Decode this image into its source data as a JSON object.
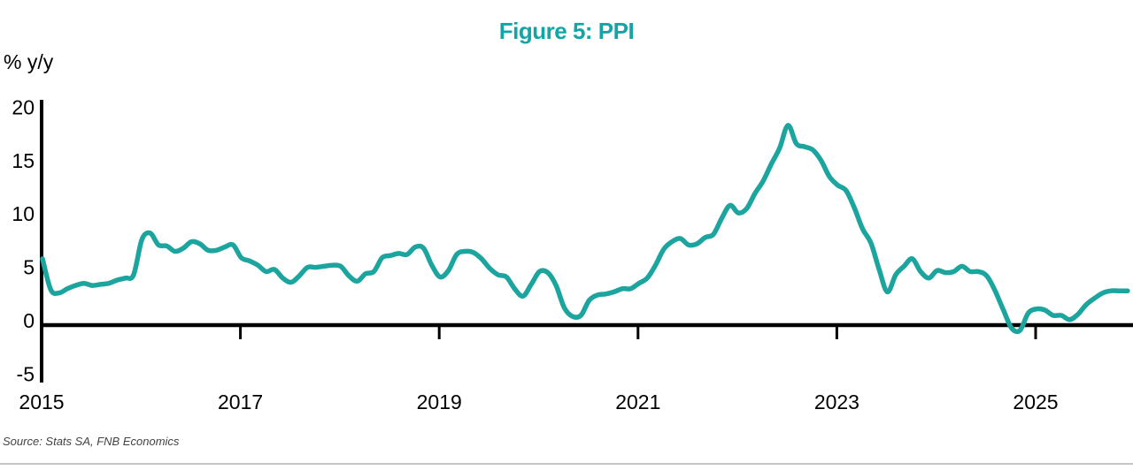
{
  "colors": {
    "title": "#12a5a6",
    "line": "#1ca59e",
    "axis": "#000000",
    "source_text": "#434343",
    "divider": "#c6c6c6"
  },
  "chart_data": {
    "type": "line",
    "title": "Figure 5: PPI",
    "ylabel": "% y/y",
    "source": "Source: Stats SA, FNB Economics",
    "ylim": [
      -5,
      20
    ],
    "y_ticks": [
      20,
      15,
      10,
      5,
      0,
      -5
    ],
    "x_ticks": [
      {
        "label": "2015",
        "year": 2015,
        "has_tick_mark": false
      },
      {
        "label": "2017",
        "year": 2017,
        "has_tick_mark": true
      },
      {
        "label": "2019",
        "year": 2019,
        "has_tick_mark": true
      },
      {
        "label": "2021",
        "year": 2021,
        "has_tick_mark": true
      },
      {
        "label": "2023",
        "year": 2023,
        "has_tick_mark": true
      },
      {
        "label": "2025",
        "year": 2025,
        "has_tick_mark": true
      }
    ],
    "grid": false,
    "legend": "none",
    "series": [
      {
        "name": "PPI % y/y",
        "start": "2015-01",
        "frequency": "monthly",
        "values": [
          5.8,
          2.9,
          2.6,
          3.0,
          3.3,
          3.5,
          3.3,
          3.4,
          3.5,
          3.8,
          4.0,
          4.3,
          7.6,
          8.2,
          7.1,
          7.0,
          6.5,
          6.8,
          7.4,
          7.2,
          6.6,
          6.6,
          6.9,
          7.1,
          5.9,
          5.6,
          5.2,
          4.6,
          4.8,
          4.0,
          3.6,
          4.2,
          5.0,
          5.0,
          5.1,
          5.2,
          5.1,
          4.2,
          3.7,
          4.4,
          4.6,
          5.9,
          6.1,
          6.3,
          6.2,
          6.9,
          6.8,
          5.2,
          4.1,
          4.7,
          6.2,
          6.5,
          6.4,
          5.8,
          4.9,
          4.3,
          4.1,
          3.0,
          2.3,
          3.4,
          4.6,
          4.5,
          3.3,
          1.2,
          0.4,
          0.5,
          1.9,
          2.4,
          2.5,
          2.7,
          3.0,
          3.0,
          3.5,
          4.0,
          5.2,
          6.7,
          7.4,
          7.7,
          7.1,
          7.2,
          7.8,
          8.1,
          9.6,
          10.8,
          10.1,
          10.5,
          11.9,
          13.1,
          14.7,
          16.2,
          18.3,
          16.6,
          16.3,
          16.0,
          15.0,
          13.5,
          12.7,
          12.2,
          10.6,
          8.6,
          7.3,
          4.8,
          2.7,
          4.3,
          5.1,
          5.8,
          4.6,
          4.0,
          4.7,
          4.5,
          4.6,
          5.1,
          4.6,
          4.6,
          4.2,
          2.8,
          1.0,
          -0.7,
          -0.9,
          0.7,
          1.1,
          1.0,
          0.5,
          0.5,
          0.1,
          0.6,
          1.5,
          2.1,
          2.6,
          2.8,
          2.8,
          2.8
        ]
      }
    ]
  }
}
